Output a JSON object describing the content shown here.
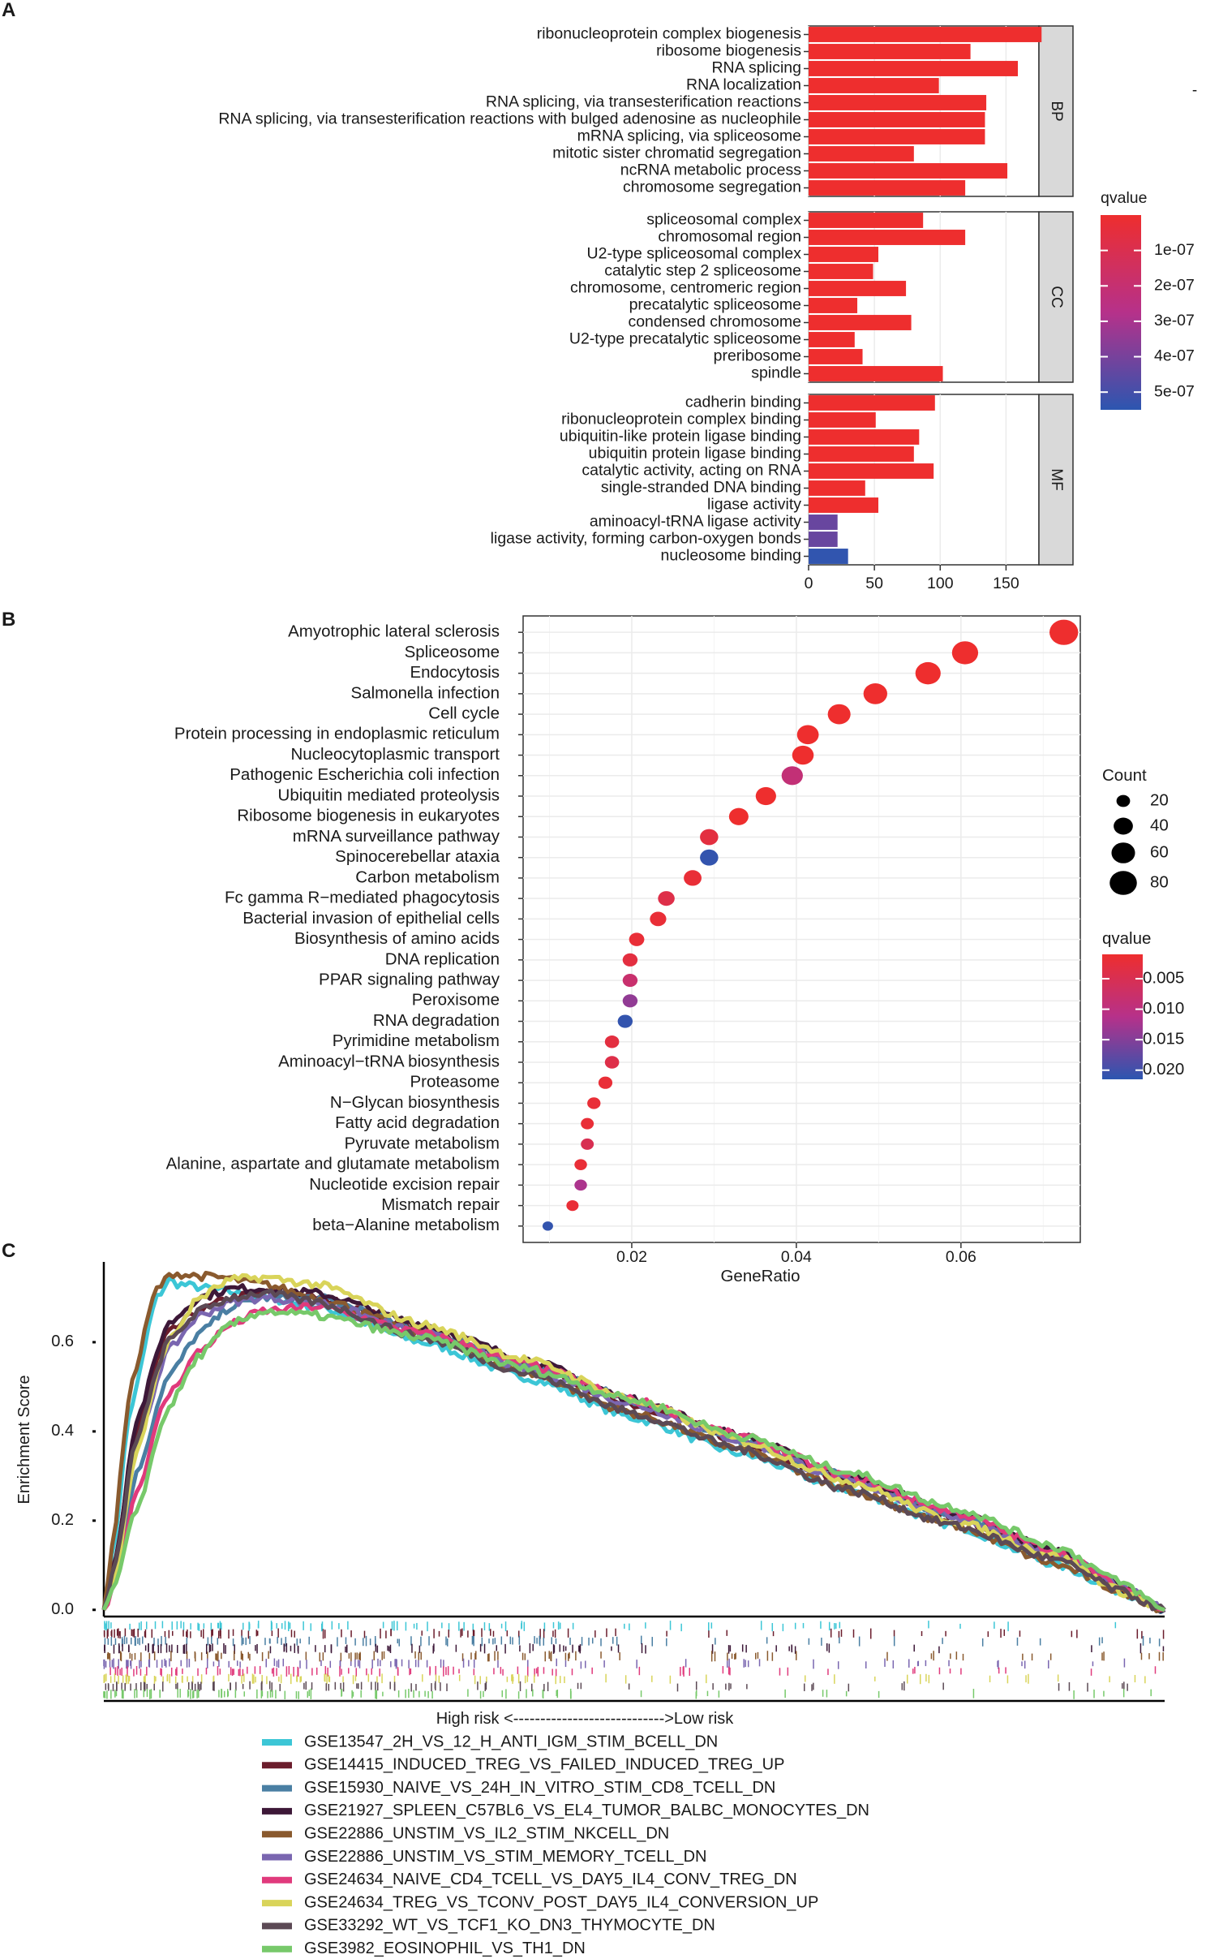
{
  "chart_data": [
    {
      "panel": "A",
      "type": "bar",
      "orientation": "horizontal",
      "xlabel": "",
      "xlim": [
        0,
        175
      ],
      "xticks": [
        0,
        50,
        100,
        150
      ],
      "legend": {
        "title": "qvalue",
        "ticks": [
          "1e-07",
          "2e-07",
          "3e-07",
          "4e-07",
          "5e-07"
        ],
        "tick_values": [
          1e-07,
          2e-07,
          3e-07,
          4e-07,
          5e-07
        ],
        "range": [
          1e-11,
          5.5e-07
        ],
        "low_color": "#ee2e2e",
        "mid_color": "#b6318a",
        "high_color": "#2c56b0"
      },
      "stray_mark": "-",
      "facets": [
        {
          "name": "BP",
          "categories": [
            "ribonucleoprotein complex biogenesis",
            "ribosome biogenesis",
            "RNA splicing",
            "RNA localization",
            "RNA splicing, via transesterification reactions",
            "RNA splicing, via transesterification reactions with bulged adenosine as nucleophile",
            "mRNA splicing, via spliceosome",
            "mitotic sister chromatid segregation",
            "ncRNA metabolic process",
            "chromosome segregation"
          ],
          "values": [
            177,
            123,
            159,
            99,
            135,
            134,
            134,
            80,
            151,
            119
          ],
          "qvalues": [
            1e-11,
            1e-11,
            1e-11,
            1e-11,
            1e-11,
            1e-11,
            1e-11,
            1e-11,
            1e-11,
            1e-11
          ]
        },
        {
          "name": "CC",
          "categories": [
            "spliceosomal complex",
            "chromosomal region",
            "U2-type spliceosomal complex",
            "catalytic step 2 spliceosome",
            "chromosome, centromeric region",
            "precatalytic spliceosome",
            "condensed chromosome",
            "U2-type precatalytic spliceosome",
            "preribosome",
            "spindle"
          ],
          "values": [
            87,
            119,
            53,
            49,
            74,
            37,
            78,
            35,
            41,
            102
          ],
          "qvalues": [
            1e-11,
            1e-11,
            1e-11,
            1e-11,
            1e-11,
            1e-11,
            1e-11,
            1e-11,
            1e-11,
            1e-11
          ]
        },
        {
          "name": "MF",
          "categories": [
            "cadherin binding",
            "ribonucleoprotein complex binding",
            "ubiquitin-like protein ligase binding",
            "ubiquitin protein ligase binding",
            "catalytic activity, acting on RNA",
            "single-stranded DNA binding",
            "ligase activity",
            "aminoacyl-tRNA ligase activity",
            "ligase activity, forming carbon-oxygen bonds",
            "nucleosome binding"
          ],
          "values": [
            96,
            51,
            84,
            80,
            95,
            43,
            53,
            22,
            22,
            30
          ],
          "qvalues": [
            1e-11,
            1e-11,
            1e-11,
            1e-11,
            1e-11,
            1e-11,
            1e-11,
            4.3e-07,
            4.3e-07,
            5.4e-07
          ]
        }
      ]
    },
    {
      "panel": "B",
      "type": "scatter",
      "xlabel": "GeneRatio",
      "ylabel": "",
      "xlim": [
        0.0068,
        0.0745
      ],
      "xticks": [
        0.02,
        0.04,
        0.06
      ],
      "xtick_labels": [
        "0.02",
        "0.04",
        "0.06"
      ],
      "categories": [
        "Amyotrophic lateral sclerosis",
        "Spliceosome",
        "Endocytosis",
        "Salmonella infection",
        "Cell cycle",
        "Protein processing in endoplasmic reticulum",
        "Nucleocytoplasmic transport",
        "Pathogenic Escherichia coli infection",
        "Ubiquitin mediated proteolysis",
        "Ribosome biogenesis in eukaryotes",
        "mRNA surveillance pathway",
        "Spinocerebellar ataxia",
        "Carbon metabolism",
        "Fc gamma R−mediated phagocytosis",
        "Bacterial invasion of epithelial cells",
        "Biosynthesis of amino acids",
        "DNA replication",
        "PPAR signaling pathway",
        "Peroxisome",
        "RNA degradation",
        "Pyrimidine metabolism",
        "Aminoacyl−tRNA biosynthesis",
        "Proteasome",
        "N−Glycan biosynthesis",
        "Fatty acid degradation",
        "Pyruvate metabolism",
        "Alanine, aspartate and glutamate metabolism",
        "Nucleotide excision repair",
        "Mismatch repair",
        "beta−Alanine metabolism"
      ],
      "gene_ratio": [
        0.0725,
        0.0605,
        0.056,
        0.0496,
        0.0452,
        0.0414,
        0.0408,
        0.0395,
        0.0363,
        0.033,
        0.0294,
        0.0294,
        0.0274,
        0.0242,
        0.0232,
        0.0206,
        0.0198,
        0.0198,
        0.0198,
        0.0192,
        0.0176,
        0.0176,
        0.0168,
        0.0154,
        0.0146,
        0.0146,
        0.0138,
        0.0138,
        0.0128,
        0.0098
      ],
      "count": [
        89,
        74,
        69,
        61,
        56,
        51,
        50,
        49,
        45,
        41,
        36,
        36,
        34,
        30,
        29,
        25,
        24,
        24,
        24,
        24,
        22,
        22,
        21,
        19,
        18,
        18,
        17,
        17,
        16,
        12
      ],
      "qvalue": [
        0.001,
        0.001,
        0.001,
        0.001,
        0.001,
        0.001,
        0.001,
        0.009,
        0.001,
        0.001,
        0.003,
        0.021,
        0.002,
        0.004,
        0.002,
        0.002,
        0.003,
        0.008,
        0.014,
        0.021,
        0.003,
        0.004,
        0.002,
        0.002,
        0.002,
        0.005,
        0.002,
        0.012,
        0.002,
        0.021
      ],
      "size_legend": {
        "title": "Count",
        "labels": [
          "20",
          "40",
          "60",
          "80"
        ],
        "values": [
          20,
          40,
          60,
          80
        ]
      },
      "color_legend": {
        "title": "qvalue",
        "labels": [
          "0.005",
          "0.010",
          "0.015",
          "0.020"
        ],
        "values": [
          0.005,
          0.01,
          0.015,
          0.02
        ],
        "range": [
          0.001,
          0.0215
        ],
        "low_color": "#ee2e2e",
        "mid_color": "#b6318a",
        "high_color": "#2c56b0"
      }
    },
    {
      "panel": "C",
      "type": "line",
      "subtype": "gsea",
      "ylabel": "Enrichment Score",
      "xlim": [
        0,
        1
      ],
      "ylim": [
        -0.015,
        0.78
      ],
      "yticks": [
        0.0,
        0.2,
        0.4,
        0.6
      ],
      "ytick_labels": [
        "0.0",
        "0.2",
        "0.4",
        "0.6"
      ],
      "rank_axis_label": "High risk <---------------------------->Low risk",
      "series": [
        {
          "name": "GSE13547_2H_VS_12_H_ANTI_IGM_STIM_BCELL_DN",
          "color": "#3cc6d6",
          "x": [
            0,
            0.008,
            0.025,
            0.05,
            0.062,
            0.07,
            0.1,
            0.15,
            0.2,
            0.3,
            0.4,
            0.5,
            0.6,
            0.7,
            0.8,
            0.9,
            0.96,
            1.0
          ],
          "y": [
            0,
            0.12,
            0.45,
            0.7,
            0.74,
            0.73,
            0.72,
            0.7,
            0.68,
            0.6,
            0.52,
            0.43,
            0.35,
            0.27,
            0.19,
            0.1,
            0.04,
            0
          ]
        },
        {
          "name": "GSE14415_INDUCED_TREG_VS_FAILED_INDUCED_TREG_UP",
          "color": "#6b1d2c",
          "x": [
            0,
            0.01,
            0.03,
            0.06,
            0.09,
            0.12,
            0.15,
            0.2,
            0.3,
            0.4,
            0.5,
            0.6,
            0.7,
            0.8,
            0.9,
            0.96,
            1.0
          ],
          "y": [
            0,
            0.1,
            0.4,
            0.62,
            0.67,
            0.7,
            0.71,
            0.7,
            0.63,
            0.55,
            0.46,
            0.38,
            0.29,
            0.21,
            0.12,
            0.05,
            0
          ]
        },
        {
          "name": "GSE15930_NAIVE_VS_24H_IN_VITRO_STIM_CD8_TCELL_DN",
          "color": "#4a7fa3",
          "x": [
            0,
            0.01,
            0.03,
            0.06,
            0.09,
            0.12,
            0.15,
            0.2,
            0.3,
            0.4,
            0.5,
            0.6,
            0.7,
            0.8,
            0.9,
            0.96,
            1.0
          ],
          "y": [
            0,
            0.08,
            0.3,
            0.52,
            0.62,
            0.68,
            0.7,
            0.7,
            0.63,
            0.55,
            0.47,
            0.38,
            0.3,
            0.21,
            0.13,
            0.05,
            0
          ]
        },
        {
          "name": "GSE21927_SPLEEN_C57BL6_VS_EL4_TUMOR_BALBC_MONOCYTES_DN",
          "color": "#3d1838",
          "x": [
            0,
            0.01,
            0.03,
            0.06,
            0.09,
            0.12,
            0.15,
            0.2,
            0.3,
            0.4,
            0.5,
            0.6,
            0.7,
            0.8,
            0.9,
            0.96,
            1.0
          ],
          "y": [
            0,
            0.1,
            0.42,
            0.64,
            0.7,
            0.72,
            0.72,
            0.71,
            0.64,
            0.56,
            0.47,
            0.39,
            0.3,
            0.22,
            0.13,
            0.05,
            0
          ]
        },
        {
          "name": "GSE22886_UNSTIM_VS_IL2_STIM_NKCELL_DN",
          "color": "#8a5a2e",
          "x": [
            0,
            0.008,
            0.025,
            0.05,
            0.065,
            0.08,
            0.11,
            0.15,
            0.2,
            0.3,
            0.4,
            0.5,
            0.6,
            0.7,
            0.8,
            0.9,
            0.96,
            1.0
          ],
          "y": [
            0,
            0.14,
            0.5,
            0.72,
            0.755,
            0.75,
            0.745,
            0.73,
            0.7,
            0.62,
            0.53,
            0.44,
            0.36,
            0.27,
            0.19,
            0.1,
            0.04,
            0
          ]
        },
        {
          "name": "GSE22886_UNSTIM_VS_STIM_MEMORY_TCELL_DN",
          "color": "#7a66b0",
          "x": [
            0,
            0.01,
            0.03,
            0.06,
            0.09,
            0.12,
            0.15,
            0.2,
            0.3,
            0.4,
            0.5,
            0.6,
            0.7,
            0.8,
            0.9,
            0.96,
            1.0
          ],
          "y": [
            0,
            0.09,
            0.36,
            0.58,
            0.66,
            0.69,
            0.7,
            0.69,
            0.62,
            0.54,
            0.46,
            0.38,
            0.29,
            0.21,
            0.12,
            0.05,
            0
          ]
        },
        {
          "name": "GSE24634_NAIVE_CD4_TCELL_VS_DAY5_IL4_CONV_TREG_DN",
          "color": "#e03a7c",
          "x": [
            0,
            0.01,
            0.03,
            0.06,
            0.09,
            0.12,
            0.15,
            0.2,
            0.3,
            0.4,
            0.5,
            0.6,
            0.7,
            0.8,
            0.9,
            0.96,
            1.0
          ],
          "y": [
            0,
            0.06,
            0.26,
            0.48,
            0.58,
            0.64,
            0.67,
            0.68,
            0.62,
            0.55,
            0.47,
            0.39,
            0.3,
            0.22,
            0.13,
            0.05,
            0
          ]
        },
        {
          "name": "GSE24634_TREG_VS_TCONV_POST_DAY5_IL4_CONVERSION_UP",
          "color": "#d9d45a",
          "x": [
            0,
            0.01,
            0.03,
            0.06,
            0.09,
            0.12,
            0.15,
            0.2,
            0.3,
            0.4,
            0.5,
            0.6,
            0.7,
            0.8,
            0.9,
            0.96,
            1.0
          ],
          "y": [
            0,
            0.07,
            0.35,
            0.6,
            0.7,
            0.74,
            0.745,
            0.73,
            0.64,
            0.56,
            0.47,
            0.38,
            0.29,
            0.2,
            0.12,
            0.04,
            0
          ]
        },
        {
          "name": "GSE33292_WT_VS_TCF1_KO_DN3_THYMOCYTE_DN",
          "color": "#5c4a55",
          "x": [
            0,
            0.01,
            0.03,
            0.06,
            0.09,
            0.12,
            0.15,
            0.2,
            0.3,
            0.4,
            0.5,
            0.6,
            0.7,
            0.8,
            0.9,
            0.96,
            1.0
          ],
          "y": [
            0,
            0.09,
            0.38,
            0.6,
            0.67,
            0.7,
            0.71,
            0.69,
            0.61,
            0.53,
            0.44,
            0.36,
            0.27,
            0.19,
            0.11,
            0.04,
            0
          ]
        },
        {
          "name": "GSE3982_EOSINOPHIL_VS_TH1_DN",
          "color": "#77c96a",
          "x": [
            0,
            0.01,
            0.03,
            0.06,
            0.09,
            0.12,
            0.15,
            0.2,
            0.3,
            0.4,
            0.5,
            0.6,
            0.7,
            0.8,
            0.9,
            0.96,
            1.0
          ],
          "y": [
            0,
            0.05,
            0.22,
            0.45,
            0.57,
            0.64,
            0.67,
            0.66,
            0.61,
            0.54,
            0.47,
            0.39,
            0.31,
            0.23,
            0.14,
            0.06,
            0
          ]
        }
      ]
    }
  ]
}
